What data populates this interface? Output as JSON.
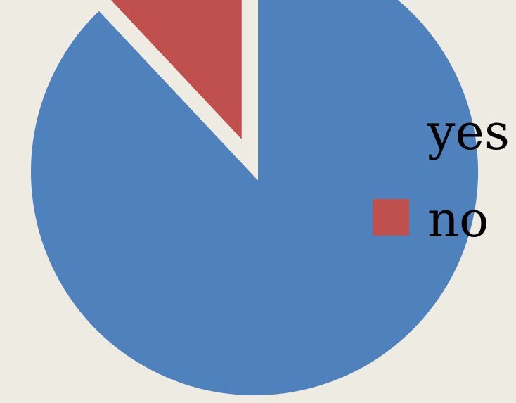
{
  "chart_data": {
    "type": "pie",
    "title": "",
    "labels": [
      "yes",
      "no"
    ],
    "values": [
      88,
      12
    ],
    "colors": [
      "#4f81bd",
      "#c0504d"
    ],
    "exploded": [
      false,
      true
    ],
    "start_angle_deg": 0,
    "direction": "clockwise",
    "legend": {
      "position": "right",
      "entries": [
        "yes",
        "no"
      ]
    },
    "background": "#edebe2"
  }
}
